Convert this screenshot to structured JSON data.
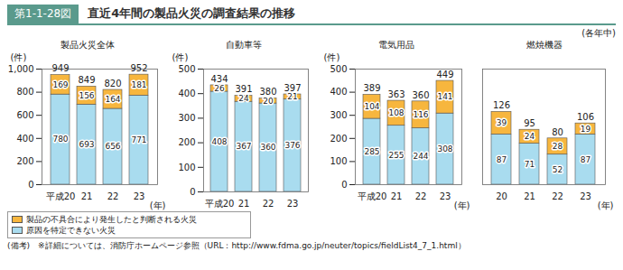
{
  "figure_label": "第1-1-28図",
  "title": "直近4年間の製品火災の調査結果の推移",
  "subtitle": "(各年中)",
  "note_label": "(備考)",
  "note": "※詳細については、消防庁ホームページ参照（URL：http://www.fdma.go.jp/neuter/topics/fieldList4_7_1.html）",
  "chart_data": [
    {
      "type": "bar",
      "title": "製品火災全体",
      "stacked": true,
      "data_labels": true,
      "grid": false,
      "categories": [
        "平成20",
        "21",
        "22",
        "23"
      ],
      "series": [
        {
          "name": "原因を特定できない火災",
          "color": "#a9dcef",
          "values": [
            780,
            693,
            656,
            771
          ]
        },
        {
          "name": "製品の不具合により発生したと判断される火災",
          "color": "#f7b63e",
          "values": [
            169,
            156,
            164,
            181
          ]
        }
      ],
      "totals": [
        949,
        849,
        820,
        952
      ],
      "ylim": [
        0,
        1000
      ],
      "yticks": [
        0,
        200,
        400,
        600,
        800,
        {
          "value": 1000,
          "label": "1,000"
        }
      ],
      "y_label": "(件)",
      "x_label": "(年)"
    },
    {
      "type": "bar",
      "title": "自動車等",
      "stacked": true,
      "data_labels": true,
      "grid": false,
      "categories": [
        "平成20",
        "21",
        "22",
        "23"
      ],
      "series": [
        {
          "name": "原因を特定できない火災",
          "color": "#a9dcef",
          "values": [
            408,
            367,
            360,
            376
          ]
        },
        {
          "name": "製品の不具合により発生したと判断される火災",
          "color": "#f7b63e",
          "values": [
            26,
            24,
            20,
            21
          ]
        }
      ],
      "totals": [
        434,
        391,
        380,
        397
      ],
      "ylim": [
        0,
        500
      ],
      "yticks": [
        0,
        100,
        200,
        300,
        400,
        500
      ],
      "y_label": "(件)"
    },
    {
      "type": "bar",
      "title": "電気用品",
      "stacked": true,
      "data_labels": true,
      "grid": false,
      "categories": [
        "平成20",
        "21",
        "22",
        "23"
      ],
      "series": [
        {
          "name": "原因を特定できない火災",
          "color": "#a9dcef",
          "values": [
            285,
            255,
            244,
            308
          ]
        },
        {
          "name": "製品の不具合により発生したと判断される火災",
          "color": "#f7b63e",
          "values": [
            104,
            108,
            116,
            141
          ]
        }
      ],
      "totals": [
        389,
        363,
        360,
        449
      ],
      "ylim": [
        0,
        500
      ],
      "yticks": [
        0,
        100,
        200,
        300,
        400,
        500
      ],
      "y_label": "(件)",
      "x_label": "(年)"
    },
    {
      "type": "bar",
      "title": "燃焼機器",
      "stacked": true,
      "data_labels": true,
      "grid": false,
      "tick_labels": "x",
      "categories": [
        "20",
        "21",
        "22",
        "23"
      ],
      "series": [
        {
          "name": "原因を特定できない火災",
          "color": "#a9dcef",
          "values": [
            87,
            71,
            52,
            87
          ]
        },
        {
          "name": "製品の不具合により発生したと判断される火災",
          "color": "#f7b63e",
          "values": [
            39,
            24,
            28,
            19
          ]
        }
      ],
      "totals": [
        126,
        95,
        80,
        106
      ],
      "ylim": [
        0,
        200
      ],
      "x_label": "(年)"
    }
  ]
}
